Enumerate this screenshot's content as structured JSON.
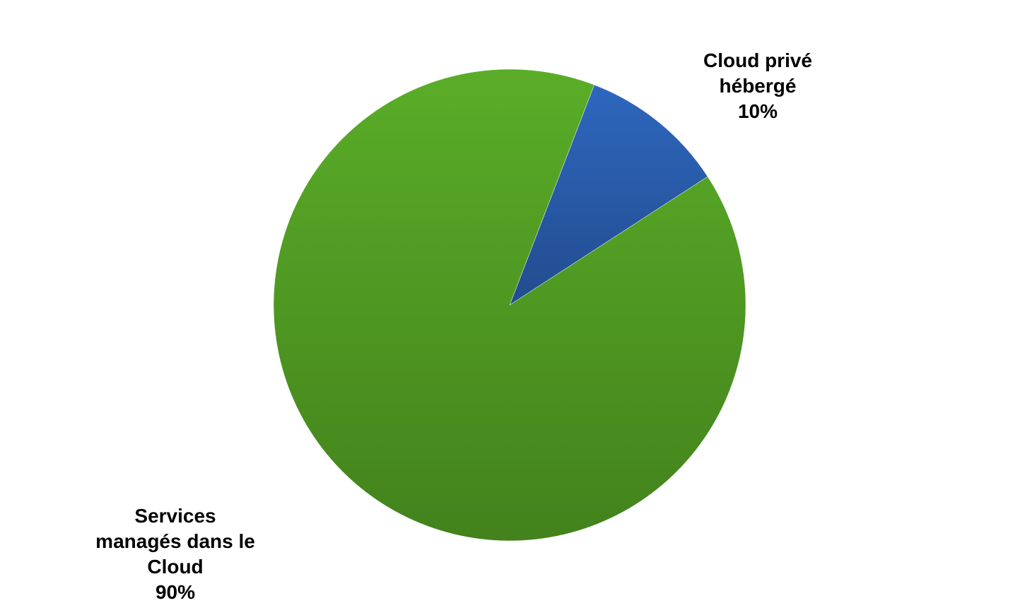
{
  "chart_data": {
    "type": "pie",
    "slices": [
      {
        "label_lines": [
          "Cloud privé",
          "hébergé"
        ],
        "value": 10,
        "value_label": "10%",
        "color_top": "#2E67BE",
        "color_bottom": "#224C8E"
      },
      {
        "label_lines": [
          "Services",
          "managés dans le",
          "Cloud"
        ],
        "value": 90,
        "value_label": "90%",
        "color_top": "#5AAD28",
        "color_bottom": "#43821C"
      }
    ],
    "start_angle_deg": 21,
    "direction": "clockwise",
    "legend": "none",
    "data_labels": "outside"
  }
}
